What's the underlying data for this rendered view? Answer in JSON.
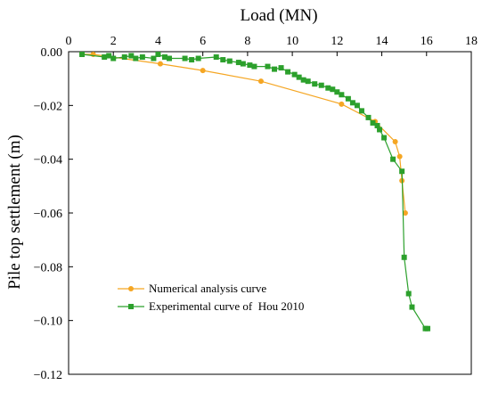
{
  "chart_data": {
    "type": "line",
    "title": "",
    "xlabel": "Load (MN)",
    "ylabel": "Pile top settlement (m)",
    "x_axis_position": "top",
    "xlim": [
      0,
      18
    ],
    "ylim": [
      -0.12,
      0
    ],
    "x_ticks": [
      0,
      2,
      4,
      6,
      8,
      10,
      12,
      14,
      16,
      18
    ],
    "x_tick_labels": [
      "0",
      "2",
      "4",
      "6",
      "8",
      "10",
      "12",
      "14",
      "16",
      "18"
    ],
    "y_ticks": [
      0,
      -0.02,
      -0.04,
      -0.06,
      -0.08,
      -0.1,
      -0.12
    ],
    "y_tick_labels": [
      "0.00",
      "−0.02",
      "−0.04",
      "−0.06",
      "−0.08",
      "−0.10",
      "−0.12"
    ],
    "grid": false,
    "legend_position": "bottom-left",
    "series": [
      {
        "name": "Numerical analysis curve",
        "color": "#f5a623",
        "marker": "circle",
        "points": [
          [
            0.6,
            -0.001
          ],
          [
            1.1,
            -0.001
          ],
          [
            4.1,
            -0.0045
          ],
          [
            6.0,
            -0.007
          ],
          [
            8.6,
            -0.011
          ],
          [
            12.2,
            -0.0195
          ],
          [
            13.7,
            -0.026
          ],
          [
            14.6,
            -0.0335
          ],
          [
            14.8,
            -0.039
          ],
          [
            14.9,
            -0.048
          ],
          [
            15.05,
            -0.06
          ]
        ]
      },
      {
        "name": "Experimental curve of  Hou 2010",
        "color": "#2ca02c",
        "marker": "square",
        "points": [
          [
            0.6,
            -0.001
          ],
          [
            1.6,
            -0.002
          ],
          [
            1.8,
            -0.0015
          ],
          [
            2.0,
            -0.0025
          ],
          [
            2.5,
            -0.002
          ],
          [
            2.8,
            -0.0015
          ],
          [
            3.0,
            -0.0025
          ],
          [
            3.3,
            -0.002
          ],
          [
            3.8,
            -0.0025
          ],
          [
            4.0,
            -0.001
          ],
          [
            4.3,
            -0.002
          ],
          [
            4.5,
            -0.0025
          ],
          [
            5.2,
            -0.0025
          ],
          [
            5.5,
            -0.003
          ],
          [
            5.8,
            -0.0025
          ],
          [
            6.6,
            -0.002
          ],
          [
            6.9,
            -0.003
          ],
          [
            7.2,
            -0.0035
          ],
          [
            7.6,
            -0.004
          ],
          [
            7.8,
            -0.0045
          ],
          [
            8.1,
            -0.005
          ],
          [
            8.3,
            -0.0055
          ],
          [
            8.9,
            -0.0055
          ],
          [
            9.2,
            -0.0065
          ],
          [
            9.5,
            -0.006
          ],
          [
            9.8,
            -0.0075
          ],
          [
            10.1,
            -0.0085
          ],
          [
            10.3,
            -0.0095
          ],
          [
            10.5,
            -0.0105
          ],
          [
            10.7,
            -0.011
          ],
          [
            11.0,
            -0.012
          ],
          [
            11.3,
            -0.0125
          ],
          [
            11.6,
            -0.0135
          ],
          [
            11.8,
            -0.014
          ],
          [
            12.0,
            -0.015
          ],
          [
            12.2,
            -0.016
          ],
          [
            12.5,
            -0.0175
          ],
          [
            12.7,
            -0.019
          ],
          [
            12.9,
            -0.02
          ],
          [
            13.1,
            -0.022
          ],
          [
            13.4,
            -0.0245
          ],
          [
            13.6,
            -0.0265
          ],
          [
            13.8,
            -0.0275
          ],
          [
            13.9,
            -0.029
          ],
          [
            14.1,
            -0.032
          ],
          [
            14.5,
            -0.04
          ],
          [
            14.9,
            -0.0445
          ],
          [
            15.0,
            -0.0765
          ],
          [
            15.2,
            -0.09
          ],
          [
            15.35,
            -0.095
          ],
          [
            15.95,
            -0.103
          ],
          [
            16.05,
            -0.103
          ]
        ]
      }
    ]
  }
}
